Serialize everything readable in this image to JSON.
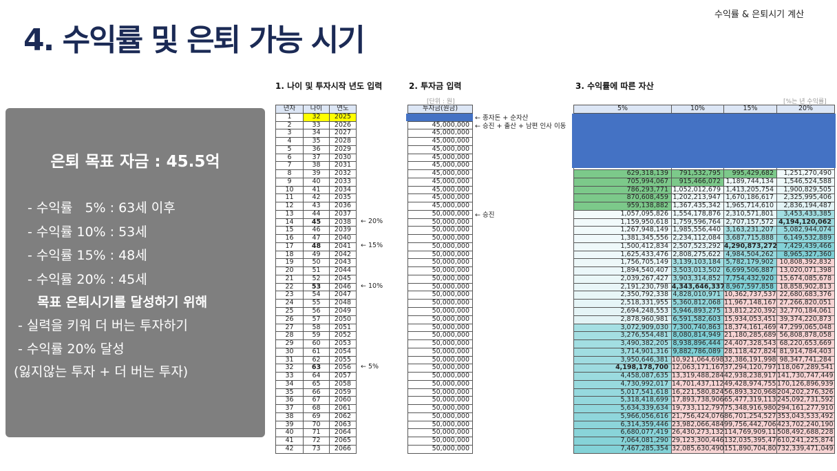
{
  "header": {
    "title": "4. 수익률 및 은퇴 가능 시기",
    "corner_label": "수익률 & 은퇴시기 계산"
  },
  "summary": {
    "goal": "은퇴 목표 자금 : 45.5억",
    "lines": [
      "- 수익률   5% : 63세 이후",
      "- 수익률 10% : 53세",
      "- 수익률 15% : 48세",
      "- 수익률 20% : 45세"
    ],
    "subheading": "목표 은퇴시기를 달성하기 위해",
    "actions": [
      "- 실력을 키워 더 버는 투자하기",
      "- 수익률 20% 달성",
      "(잃지않는 투자 + 더 버는 투자)"
    ]
  },
  "table1": {
    "title": "1. 나이 및 투자시작 년도 입력",
    "headers": [
      "년차",
      "나이",
      "연도"
    ],
    "start_age": 32,
    "start_year": 2025,
    "rows": 42,
    "bold_rows": [
      14,
      17,
      22,
      32
    ],
    "notes": [
      {
        "row": 14,
        "text": "← 20%"
      },
      {
        "row": 17,
        "text": "← 15%"
      },
      {
        "row": 22,
        "text": "← 10%"
      },
      {
        "row": 32,
        "text": "← 5%"
      }
    ]
  },
  "table2": {
    "title": "2. 투자금 입력",
    "unit": "[단위 : 원]",
    "header": "투자금(원금)",
    "amounts": [
      "",
      "45,000,000",
      "45,000,000",
      "45,000,000",
      "45,000,000",
      "45,000,000",
      "45,000,000",
      "45,000,000",
      "45,000,000",
      "45,000,000",
      "45,000,000",
      "45,000,000",
      "50,000,000",
      "50,000,000",
      "50,000,000",
      "50,000,000",
      "50,000,000",
      "50,000,000",
      "50,000,000",
      "50,000,000",
      "50,000,000",
      "50,000,000",
      "50,000,000",
      "50,000,000",
      "50,000,000",
      "50,000,000",
      "50,000,000",
      "50,000,000",
      "50,000,000",
      "50,000,000",
      "50,000,000",
      "50,000,000",
      "50,000,000",
      "50,000,000",
      "50,000,000",
      "50,000,000",
      "50,000,000",
      "50,000,000",
      "50,000,000",
      "50,000,000",
      "50,000,000",
      "50,000,000"
    ],
    "notes": [
      {
        "row": 1,
        "text": "← 종자돈 + 순자산"
      },
      {
        "row": 2,
        "text": "← 승진 + 출산 + 남편 인사 이동"
      },
      {
        "row": 13,
        "text": "← 승진"
      }
    ]
  },
  "table3": {
    "title": "3. 수익률에 따른 자산",
    "unit": "[%는 년 수익률]",
    "headers": [
      "5%",
      "10%",
      "15%",
      "20%"
    ],
    "first_visible_row": 8,
    "bold": [
      [
        14,
        3
      ],
      [
        17,
        2
      ],
      [
        22,
        1
      ],
      [
        32,
        0
      ]
    ],
    "colors": {
      "green": "#7cc98a",
      "light": "#e2f3f5",
      "teal": "#7fd0d6",
      "pink": "#f8d4d4",
      "cover": "#4472c4",
      "highlight": "#ffff00"
    },
    "rows": [
      [
        "629,318,139",
        "791,532,795",
        "995,429,682",
        "1,251,270,490"
      ],
      [
        "705,994,067",
        "915,466,072",
        "1,189,744,134",
        "1,546,524,588"
      ],
      [
        "786,293,771",
        "1,052,012,679",
        "1,413,205,754",
        "1,900,829,505"
      ],
      [
        "870,608,459",
        "1,202,213,947",
        "1,670,186,617",
        "2,325,995,406"
      ],
      [
        "959,138,882",
        "1,367,435,342",
        "1,965,714,610",
        "2,836,194,487"
      ],
      [
        "1,057,095,826",
        "1,554,178,876",
        "2,310,571,801",
        "3,453,433,385"
      ],
      [
        "1,159,950,618",
        "1,759,596,764",
        "2,707,157,572",
        "4,194,120,062"
      ],
      [
        "1,267,948,149",
        "1,985,556,440",
        "3,163,231,207",
        "5,082,944,074"
      ],
      [
        "1,381,345,556",
        "2,234,112,084",
        "3,687,715,888",
        "6,149,532,889"
      ],
      [
        "1,500,412,834",
        "2,507,523,292",
        "4,290,873,272",
        "7,429,439,466"
      ],
      [
        "1,625,433,476",
        "2,808,275,622",
        "4,984,504,262",
        "8,965,327,360"
      ],
      [
        "1,756,705,149",
        "3,139,103,184",
        "5,782,179,902",
        "10,808,392,832"
      ],
      [
        "1,894,540,407",
        "3,503,013,502",
        "6,699,506,887",
        "13,020,071,398"
      ],
      [
        "2,039,267,427",
        "3,903,314,852",
        "7,754,432,920",
        "15,674,085,678"
      ],
      [
        "2,191,230,798",
        "4,343,646,337",
        "8,967,597,858",
        "18,858,902,813"
      ],
      [
        "2,350,792,338",
        "4,828,010,971",
        "10,362,737,537",
        "22,680,683,376"
      ],
      [
        "2,518,331,955",
        "5,360,812,068",
        "11,967,148,167",
        "27,266,820,051"
      ],
      [
        "2,694,248,553",
        "5,946,893,275",
        "13,812,220,392",
        "32,770,184,061"
      ],
      [
        "2,878,960,981",
        "6,591,582,603",
        "15,934,053,451",
        "39,374,220,873"
      ],
      [
        "3,072,909,030",
        "7,300,740,863",
        "18,374,161,469",
        "47,299,065,048"
      ],
      [
        "3,276,554,481",
        "8,080,814,949",
        "21,180,285,689",
        "56,808,878,058"
      ],
      [
        "3,490,382,205",
        "8,938,896,444",
        "24,407,328,543",
        "68,220,653,669"
      ],
      [
        "3,714,901,316",
        "9,882,786,089",
        "28,118,427,824",
        "81,914,784,403"
      ],
      [
        "3,950,646,381",
        "10,921,064,698",
        "32,386,191,998",
        "98,347,741,284"
      ],
      [
        "4,198,178,700",
        "12,063,171,167",
        "37,294,120,797",
        "118,067,289,541"
      ],
      [
        "4,458,087,635",
        "13,319,488,284",
        "42,938,238,917",
        "141,730,747,449"
      ],
      [
        "4,730,992,017",
        "14,701,437,112",
        "49,428,974,755",
        "170,126,896,939"
      ],
      [
        "5,017,541,618",
        "16,221,580,824",
        "56,893,320,968",
        "204,202,276,326"
      ],
      [
        "5,318,418,699",
        "17,893,738,906",
        "65,477,319,113",
        "245,092,731,592"
      ],
      [
        "5,634,339,634",
        "19,733,112,797",
        "75,348,916,980",
        "294,161,277,910"
      ],
      [
        "5,966,056,616",
        "21,756,424,076",
        "86,701,254,527",
        "353,043,533,492"
      ],
      [
        "6,314,359,446",
        "23,982,066,484",
        "99,756,442,706",
        "423,702,240,190"
      ],
      [
        "6,680,077,419",
        "26,430,273,132",
        "114,769,909,112",
        "508,492,688,228"
      ],
      [
        "7,064,081,290",
        "29,123,300,446",
        "132,035,395,479",
        "610,241,225,874"
      ],
      [
        "7,467,285,354",
        "32,085,630,490",
        "151,890,704,801",
        "732,339,471,049"
      ]
    ]
  }
}
